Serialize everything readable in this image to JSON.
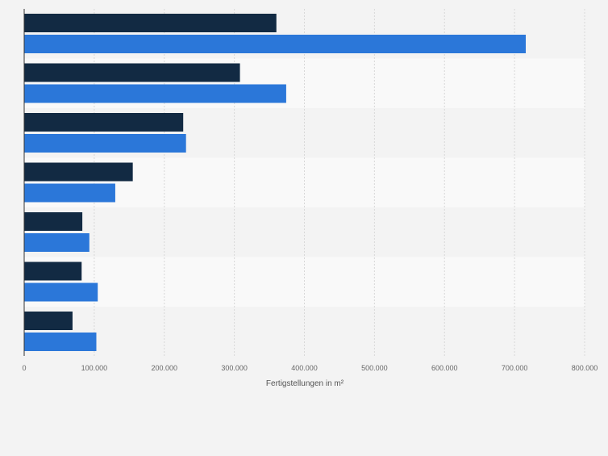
{
  "colors": {
    "background": "#f3f3f3",
    "band_light": "#f9f9f9",
    "band_dark": "#f3f3f3",
    "series_1": "#122a43",
    "series_2": "#2b77d9",
    "grid": "#d8d8d8",
    "axis": "#333333",
    "tick_text": "#666666"
  },
  "chart_data": {
    "type": "bar",
    "orientation": "horizontal",
    "title": "",
    "xlabel": "Fertigstellungen in m²",
    "ylabel": "",
    "xlim": [
      0,
      800000
    ],
    "x_ticks": [
      0,
      100000,
      200000,
      300000,
      400000,
      500000,
      600000,
      700000,
      800000
    ],
    "x_tick_labels": [
      "0",
      "100.000",
      "200.000",
      "300.000",
      "400.000",
      "500.000",
      "600.000",
      "700.000",
      "800.000"
    ],
    "grid": true,
    "legend": "none",
    "categories": [
      "",
      "",
      "",
      "",
      "",
      "",
      ""
    ],
    "series": [
      {
        "values": [
          360000,
          308000,
          227000,
          155000,
          83000,
          82000,
          69000
        ]
      },
      {
        "values": [
          716000,
          374000,
          231000,
          130000,
          93000,
          105000,
          103000
        ]
      }
    ]
  }
}
